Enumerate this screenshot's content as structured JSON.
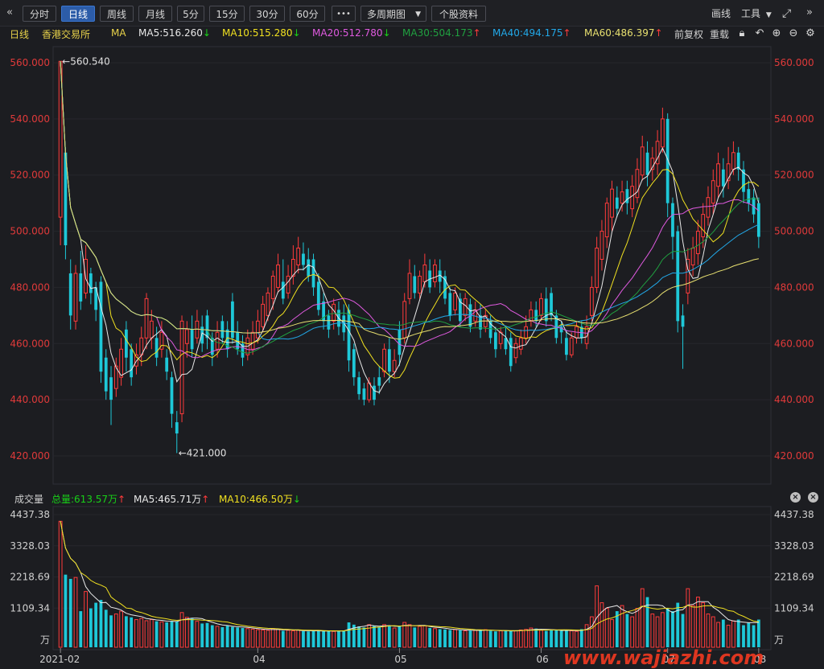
{
  "toolbar": {
    "nav_prev_icon": "double-chevron-left",
    "periods": [
      "分时",
      "日线",
      "周线",
      "月线",
      "5分",
      "15分",
      "30分",
      "60分"
    ],
    "active_period": "日线",
    "more_label": "•••",
    "multi_period_label": "多周期图",
    "multi_period_icon": "chevron-down",
    "stock_info_label": "个股资料",
    "draw_label": "画线",
    "tools_label": "工具",
    "tools_icon": "chevron-down",
    "fullscreen_icon": "expand-arrows",
    "nav_next_icon": "double-chevron-right"
  },
  "info": {
    "period": "日线",
    "exchange": "香港交易所",
    "ma_label": "MA",
    "ma": [
      {
        "label": "MA5:516.260",
        "dir": "down",
        "color": "#e8e8e8"
      },
      {
        "label": "MA10:515.280",
        "dir": "down",
        "color": "#f0e020"
      },
      {
        "label": "MA20:512.780",
        "dir": "down",
        "color": "#e05ae0"
      },
      {
        "label": "MA30:504.173",
        "dir": "up",
        "color": "#20a040"
      },
      {
        "label": "MA40:494.175",
        "dir": "up",
        "color": "#22a8e8"
      },
      {
        "label": "MA60:486.397",
        "dir": "up",
        "color": "#e8e070"
      }
    ],
    "adjust_label": "前复权",
    "reload_label": "重载",
    "icons": [
      "lock-icon",
      "undo-icon",
      "zoom-in-icon",
      "zoom-out-icon",
      "settings-icon"
    ]
  },
  "price_axis": {
    "ticks": [
      "560.000",
      "540.000",
      "520.000",
      "500.000",
      "480.000",
      "460.000",
      "440.000",
      "420.000"
    ],
    "tick_values": [
      560,
      540,
      520,
      500,
      480,
      460,
      440,
      420
    ],
    "color": "#e03a3a"
  },
  "markers": {
    "high_label": "560.540",
    "low_label": "421.000"
  },
  "volume": {
    "title": "成交量",
    "total_label": "总量:613.57万",
    "total_dir": "up",
    "ma5_label": "MA5:465.71万",
    "ma5_dir": "up",
    "ma10_label": "MA10:466.50万",
    "ma10_dir": "down",
    "ticks": [
      "4437.38",
      "3328.03",
      "2218.69",
      "1109.34",
      "万"
    ],
    "tick_values": [
      4437.38,
      3328.03,
      2218.69,
      1109.34,
      0
    ]
  },
  "x_axis": {
    "labels": [
      "2021-02",
      "04",
      "05",
      "06",
      "07",
      "08"
    ]
  },
  "watermark": "www.wajiazhi.com",
  "colors": {
    "up": "#ff3b3b",
    "down": "#1ec8d8",
    "background": "#1c1d21"
  },
  "chart_data": {
    "type": "candlestick",
    "title": "",
    "ylim": [
      415,
      565
    ],
    "candles": [
      {
        "o": 505,
        "c": 560.5,
        "h": 560.5,
        "l": 495
      },
      {
        "o": 528,
        "c": 495,
        "h": 530,
        "l": 490
      },
      {
        "o": 485,
        "c": 470,
        "h": 490,
        "l": 465
      },
      {
        "o": 468,
        "c": 485,
        "h": 488,
        "l": 465
      },
      {
        "o": 485,
        "c": 475,
        "h": 493,
        "l": 472
      },
      {
        "o": 478,
        "c": 490,
        "h": 495,
        "l": 476
      },
      {
        "o": 485,
        "c": 478,
        "h": 487,
        "l": 474
      },
      {
        "o": 480,
        "c": 472,
        "h": 482,
        "l": 468
      },
      {
        "o": 482,
        "c": 450,
        "h": 484,
        "l": 446
      },
      {
        "o": 455,
        "c": 443,
        "h": 458,
        "l": 440
      },
      {
        "o": 448,
        "c": 440,
        "h": 452,
        "l": 431
      },
      {
        "o": 444,
        "c": 452,
        "h": 455,
        "l": 441
      },
      {
        "o": 448,
        "c": 458,
        "h": 462,
        "l": 445
      },
      {
        "o": 465,
        "c": 455,
        "h": 468,
        "l": 450
      },
      {
        "o": 458,
        "c": 448,
        "h": 460,
        "l": 445
      },
      {
        "o": 452,
        "c": 456,
        "h": 460,
        "l": 449
      },
      {
        "o": 456,
        "c": 462,
        "h": 466,
        "l": 452
      },
      {
        "o": 462,
        "c": 476,
        "h": 478,
        "l": 458
      },
      {
        "o": 462,
        "c": 468,
        "h": 472,
        "l": 458
      },
      {
        "o": 462,
        "c": 455,
        "h": 466,
        "l": 452
      },
      {
        "o": 458,
        "c": 464,
        "h": 468,
        "l": 455
      },
      {
        "o": 455,
        "c": 450,
        "h": 458,
        "l": 447
      },
      {
        "o": 448,
        "c": 435,
        "h": 450,
        "l": 430
      },
      {
        "o": 432,
        "c": 428,
        "h": 436,
        "l": 421
      },
      {
        "o": 435,
        "c": 468,
        "h": 470,
        "l": 432
      },
      {
        "o": 460,
        "c": 465,
        "h": 468,
        "l": 455
      },
      {
        "o": 465,
        "c": 458,
        "h": 470,
        "l": 455
      },
      {
        "o": 462,
        "c": 468,
        "h": 472,
        "l": 460
      },
      {
        "o": 466,
        "c": 460,
        "h": 470,
        "l": 457
      },
      {
        "o": 470,
        "c": 462,
        "h": 472,
        "l": 458
      },
      {
        "o": 462,
        "c": 456,
        "h": 464,
        "l": 452
      },
      {
        "o": 458,
        "c": 464,
        "h": 468,
        "l": 455
      },
      {
        "o": 468,
        "c": 462,
        "h": 470,
        "l": 460
      },
      {
        "o": 465,
        "c": 458,
        "h": 468,
        "l": 455
      },
      {
        "o": 475,
        "c": 462,
        "h": 478,
        "l": 460
      },
      {
        "o": 464,
        "c": 458,
        "h": 468,
        "l": 456
      },
      {
        "o": 460,
        "c": 455,
        "h": 463,
        "l": 452
      },
      {
        "o": 456,
        "c": 462,
        "h": 465,
        "l": 454
      },
      {
        "o": 458,
        "c": 464,
        "h": 468,
        "l": 456
      },
      {
        "o": 462,
        "c": 468,
        "h": 472,
        "l": 460
      },
      {
        "o": 466,
        "c": 474,
        "h": 477,
        "l": 464
      },
      {
        "o": 470,
        "c": 478,
        "h": 480,
        "l": 468
      },
      {
        "o": 476,
        "c": 484,
        "h": 486,
        "l": 472
      },
      {
        "o": 480,
        "c": 488,
        "h": 492,
        "l": 478
      },
      {
        "o": 482,
        "c": 476,
        "h": 490,
        "l": 474
      },
      {
        "o": 478,
        "c": 484,
        "h": 488,
        "l": 476
      },
      {
        "o": 484,
        "c": 490,
        "h": 495,
        "l": 481
      },
      {
        "o": 488,
        "c": 494,
        "h": 498,
        "l": 485
      },
      {
        "o": 492,
        "c": 488,
        "h": 496,
        "l": 486
      },
      {
        "o": 490,
        "c": 484,
        "h": 494,
        "l": 482
      },
      {
        "o": 490,
        "c": 480,
        "h": 492,
        "l": 477
      },
      {
        "o": 482,
        "c": 472,
        "h": 485,
        "l": 470
      },
      {
        "o": 475,
        "c": 468,
        "h": 478,
        "l": 465
      },
      {
        "o": 470,
        "c": 465,
        "h": 472,
        "l": 462
      },
      {
        "o": 468,
        "c": 474,
        "h": 476,
        "l": 465
      },
      {
        "o": 472,
        "c": 466,
        "h": 475,
        "l": 463
      },
      {
        "o": 470,
        "c": 464,
        "h": 474,
        "l": 461
      },
      {
        "o": 472,
        "c": 454,
        "h": 474,
        "l": 450
      },
      {
        "o": 458,
        "c": 448,
        "h": 460,
        "l": 445
      },
      {
        "o": 448,
        "c": 442,
        "h": 450,
        "l": 440
      },
      {
        "o": 444,
        "c": 440,
        "h": 446,
        "l": 438
      },
      {
        "o": 440,
        "c": 446,
        "h": 448,
        "l": 439
      },
      {
        "o": 445,
        "c": 440,
        "h": 448,
        "l": 438
      },
      {
        "o": 448,
        "c": 445,
        "h": 452,
        "l": 442
      },
      {
        "o": 450,
        "c": 458,
        "h": 460,
        "l": 448
      },
      {
        "o": 458,
        "c": 450,
        "h": 462,
        "l": 446
      },
      {
        "o": 450,
        "c": 454,
        "h": 458,
        "l": 448
      },
      {
        "o": 465,
        "c": 456,
        "h": 468,
        "l": 452
      },
      {
        "o": 462,
        "c": 475,
        "h": 478,
        "l": 460
      },
      {
        "o": 476,
        "c": 485,
        "h": 490,
        "l": 474
      },
      {
        "o": 484,
        "c": 478,
        "h": 488,
        "l": 476
      },
      {
        "o": 478,
        "c": 484,
        "h": 486,
        "l": 476
      },
      {
        "o": 482,
        "c": 488,
        "h": 492,
        "l": 480
      },
      {
        "o": 486,
        "c": 480,
        "h": 490,
        "l": 478
      },
      {
        "o": 482,
        "c": 488,
        "h": 490,
        "l": 480
      },
      {
        "o": 486,
        "c": 482,
        "h": 490,
        "l": 478
      },
      {
        "o": 484,
        "c": 476,
        "h": 486,
        "l": 474
      },
      {
        "o": 478,
        "c": 470,
        "h": 480,
        "l": 468
      },
      {
        "o": 472,
        "c": 478,
        "h": 480,
        "l": 470
      },
      {
        "o": 476,
        "c": 468,
        "h": 478,
        "l": 466
      },
      {
        "o": 470,
        "c": 476,
        "h": 478,
        "l": 468
      },
      {
        "o": 474,
        "c": 466,
        "h": 476,
        "l": 464
      },
      {
        "o": 468,
        "c": 472,
        "h": 475,
        "l": 466
      },
      {
        "o": 470,
        "c": 465,
        "h": 474,
        "l": 462
      },
      {
        "o": 466,
        "c": 470,
        "h": 472,
        "l": 464
      },
      {
        "o": 468,
        "c": 462,
        "h": 470,
        "l": 460
      },
      {
        "o": 464,
        "c": 458,
        "h": 466,
        "l": 455
      },
      {
        "o": 460,
        "c": 464,
        "h": 466,
        "l": 458
      },
      {
        "o": 462,
        "c": 458,
        "h": 466,
        "l": 456
      },
      {
        "o": 462,
        "c": 452,
        "h": 464,
        "l": 450
      },
      {
        "o": 455,
        "c": 460,
        "h": 462,
        "l": 453
      },
      {
        "o": 458,
        "c": 462,
        "h": 465,
        "l": 456
      },
      {
        "o": 462,
        "c": 466,
        "h": 470,
        "l": 460
      },
      {
        "o": 468,
        "c": 472,
        "h": 475,
        "l": 466
      },
      {
        "o": 472,
        "c": 468,
        "h": 475,
        "l": 466
      },
      {
        "o": 470,
        "c": 476,
        "h": 478,
        "l": 468
      },
      {
        "o": 476,
        "c": 468,
        "h": 480,
        "l": 466
      },
      {
        "o": 478,
        "c": 470,
        "h": 480,
        "l": 468
      },
      {
        "o": 470,
        "c": 462,
        "h": 472,
        "l": 460
      },
      {
        "o": 466,
        "c": 464,
        "h": 468,
        "l": 460
      },
      {
        "o": 462,
        "c": 456,
        "h": 465,
        "l": 454
      },
      {
        "o": 456,
        "c": 462,
        "h": 464,
        "l": 455
      },
      {
        "o": 462,
        "c": 466,
        "h": 468,
        "l": 460
      },
      {
        "o": 466,
        "c": 462,
        "h": 468,
        "l": 460
      },
      {
        "o": 460,
        "c": 466,
        "h": 470,
        "l": 458
      },
      {
        "o": 470,
        "c": 480,
        "h": 484,
        "l": 468
      },
      {
        "o": 480,
        "c": 494,
        "h": 498,
        "l": 478
      },
      {
        "o": 490,
        "c": 500,
        "h": 504,
        "l": 486
      },
      {
        "o": 498,
        "c": 510,
        "h": 512,
        "l": 494
      },
      {
        "o": 505,
        "c": 515,
        "h": 518,
        "l": 500
      },
      {
        "o": 512,
        "c": 508,
        "h": 516,
        "l": 505
      },
      {
        "o": 510,
        "c": 514,
        "h": 518,
        "l": 507
      },
      {
        "o": 515,
        "c": 510,
        "h": 518,
        "l": 506
      },
      {
        "o": 508,
        "c": 516,
        "h": 520,
        "l": 505
      },
      {
        "o": 512,
        "c": 522,
        "h": 526,
        "l": 510
      },
      {
        "o": 520,
        "c": 530,
        "h": 534,
        "l": 518
      },
      {
        "o": 528,
        "c": 520,
        "h": 532,
        "l": 516
      },
      {
        "o": 522,
        "c": 526,
        "h": 530,
        "l": 518
      },
      {
        "o": 524,
        "c": 532,
        "h": 536,
        "l": 520
      },
      {
        "o": 530,
        "c": 540,
        "h": 544,
        "l": 528
      },
      {
        "o": 540,
        "c": 510,
        "h": 542,
        "l": 505
      },
      {
        "o": 510,
        "c": 498,
        "h": 512,
        "l": 490
      },
      {
        "o": 500,
        "c": 468,
        "h": 502,
        "l": 464
      },
      {
        "o": 470,
        "c": 466,
        "h": 474,
        "l": 451
      },
      {
        "o": 478,
        "c": 490,
        "h": 494,
        "l": 474
      },
      {
        "o": 488,
        "c": 494,
        "h": 498,
        "l": 484
      },
      {
        "o": 492,
        "c": 500,
        "h": 504,
        "l": 488
      },
      {
        "o": 498,
        "c": 506,
        "h": 510,
        "l": 494
      },
      {
        "o": 505,
        "c": 512,
        "h": 516,
        "l": 502
      },
      {
        "o": 510,
        "c": 518,
        "h": 522,
        "l": 506
      },
      {
        "o": 516,
        "c": 524,
        "h": 528,
        "l": 512
      },
      {
        "o": 522,
        "c": 516,
        "h": 526,
        "l": 512
      },
      {
        "o": 518,
        "c": 524,
        "h": 530,
        "l": 515
      },
      {
        "o": 522,
        "c": 528,
        "h": 532,
        "l": 520
      },
      {
        "o": 528,
        "c": 522,
        "h": 530,
        "l": 518
      },
      {
        "o": 522,
        "c": 514,
        "h": 525,
        "l": 510
      },
      {
        "o": 515,
        "c": 510,
        "h": 518,
        "l": 507
      },
      {
        "o": 512,
        "c": 506,
        "h": 515,
        "l": 503
      },
      {
        "o": 510,
        "c": 498,
        "h": 512,
        "l": 494
      }
    ],
    "volumes": [
      4200,
      2300,
      2150,
      2200,
      1000,
      1700,
      1100,
      1300,
      1400,
      1050,
      850,
      900,
      1000,
      820,
      780,
      700,
      740,
      660,
      700,
      640,
      620,
      600,
      650,
      640,
      950,
      780,
      740,
      640,
      560,
      580,
      500,
      460,
      430,
      480,
      440,
      420,
      400,
      380,
      360,
      340,
      330,
      320,
      380,
      360,
      300,
      320,
      300,
      330,
      290,
      280,
      310,
      300,
      290,
      300,
      280,
      290,
      310,
      600,
      520,
      460,
      420,
      520,
      480,
      440,
      520,
      480,
      400,
      460,
      600,
      520,
      420,
      460,
      480,
      400,
      380,
      360,
      350,
      330,
      340,
      320,
      300,
      310,
      320,
      330,
      340,
      300,
      280,
      300,
      320,
      290,
      300,
      330,
      350,
      400,
      380,
      320,
      300,
      320,
      340,
      300,
      320,
      300,
      280,
      360,
      520,
      800,
      1900,
      1300,
      1100,
      700,
      1000,
      1200,
      900,
      800,
      1100,
      1800,
      1500,
      900,
      800,
      950,
      1100,
      1000,
      1300,
      900,
      1800,
      1200,
      1500,
      1300,
      900,
      800,
      600,
      700,
      500,
      650,
      700,
      500,
      600,
      500,
      700
    ],
    "ma_lines": [
      {
        "name": "MA5",
        "color": "#e8e8e8",
        "values": [
          516.26
        ]
      },
      {
        "name": "MA10",
        "color": "#f0e020",
        "values": [
          515.28
        ]
      },
      {
        "name": "MA20",
        "color": "#e05ae0",
        "values": [
          512.78
        ]
      },
      {
        "name": "MA30",
        "color": "#20a040",
        "values": [
          504.173
        ]
      },
      {
        "name": "MA40",
        "color": "#22a8e8",
        "values": [
          494.175
        ]
      },
      {
        "name": "MA60",
        "color": "#e8e070",
        "values": [
          486.397
        ]
      }
    ]
  }
}
